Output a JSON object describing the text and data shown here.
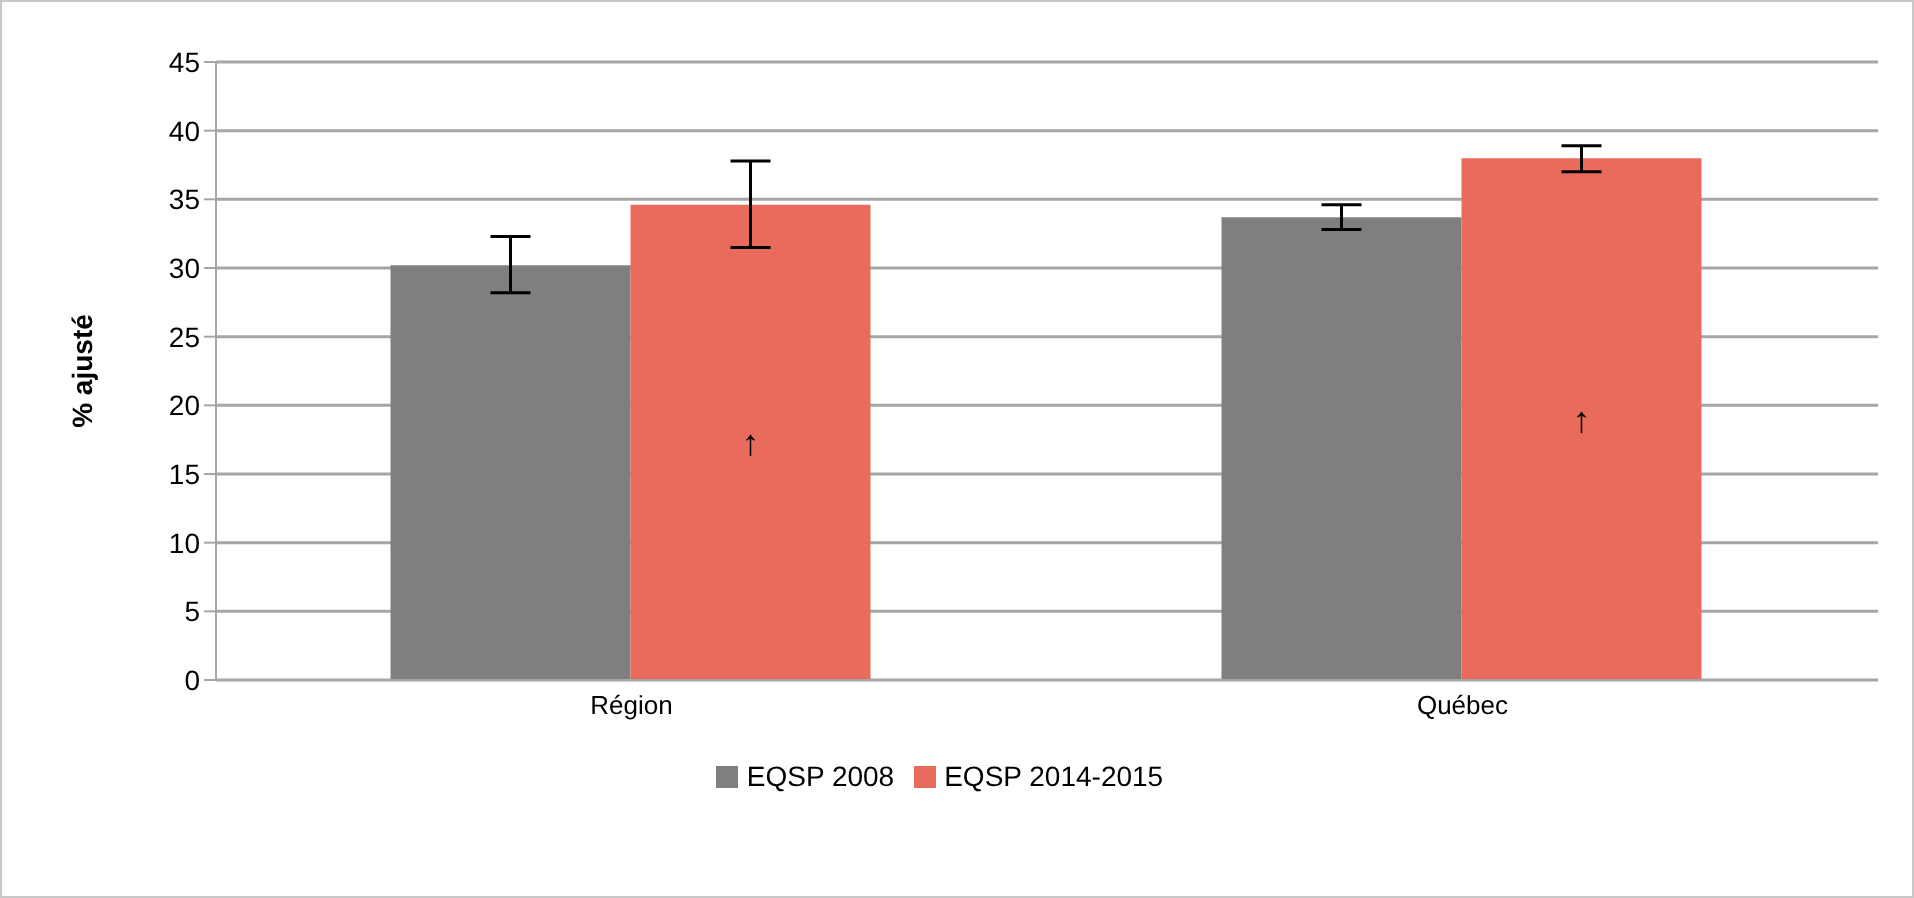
{
  "chart_data": {
    "type": "bar",
    "ylabel": "% ajusté",
    "categories": [
      "Région",
      "Québec"
    ],
    "series": [
      {
        "name": "EQSP 2008",
        "color": "#7f7f7f",
        "values": [
          30.2,
          33.7
        ],
        "errors": [
          [
            28.2,
            32.3
          ],
          [
            32.8,
            34.6
          ]
        ]
      },
      {
        "name": "EQSP 2014-2015",
        "color": "#e86b5c",
        "values": [
          34.6,
          38.0
        ],
        "errors": [
          [
            31.5,
            37.8
          ],
          [
            37.0,
            38.9
          ]
        ],
        "value_labels": [
          "↑",
          "↑"
        ]
      }
    ],
    "ylim": [
      0,
      45
    ],
    "yticks": [
      0,
      5,
      10,
      15,
      20,
      25,
      30,
      35,
      40,
      45
    ],
    "grid": "y",
    "legend": "bottom"
  }
}
